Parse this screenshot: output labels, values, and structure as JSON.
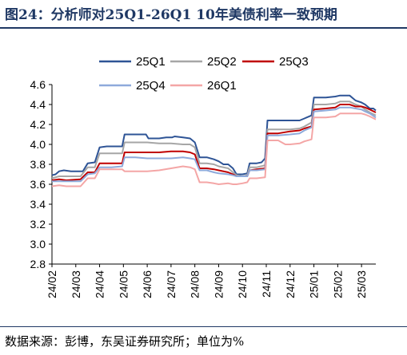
{
  "title": "图24：分析师对25Q1-26Q1 10年美债利率一致预期",
  "source": "数据来源：彭博，东吴证券研究所；单位为%",
  "chart_data": {
    "type": "line",
    "title": "图24：分析师对25Q1-26Q1 10年美债利率一致预期",
    "xlabel": "",
    "ylabel": "",
    "x_ticks": [
      "24/02",
      "24/03",
      "24/04",
      "24/05",
      "24/06",
      "24/07",
      "24/08",
      "24/09",
      "24/10",
      "24/11",
      "24/12",
      "25/01",
      "25/02",
      "25/03"
    ],
    "y_ticks": [
      "2.8",
      "3.0",
      "3.2",
      "3.4",
      "3.6",
      "3.8",
      "4.0",
      "4.2",
      "4.4",
      "4.6"
    ],
    "ylim": [
      2.8,
      4.6
    ],
    "x_range": [
      0,
      13.6
    ],
    "grid": false,
    "legend_position": "top",
    "series": [
      {
        "name": "25Q1",
        "color": "#2e5496",
        "points": [
          [
            0,
            3.69
          ],
          [
            0.15,
            3.7
          ],
          [
            0.3,
            3.73
          ],
          [
            0.5,
            3.74
          ],
          [
            0.8,
            3.73
          ],
          [
            1.1,
            3.73
          ],
          [
            1.3,
            3.73
          ],
          [
            1.5,
            3.81
          ],
          [
            1.8,
            3.82
          ],
          [
            2.0,
            3.97
          ],
          [
            2.3,
            3.98
          ],
          [
            2.7,
            3.98
          ],
          [
            2.95,
            3.98
          ],
          [
            3.05,
            4.1
          ],
          [
            3.5,
            4.1
          ],
          [
            3.95,
            4.1
          ],
          [
            4.05,
            4.06
          ],
          [
            4.5,
            4.06
          ],
          [
            4.8,
            4.07
          ],
          [
            5.05,
            4.07
          ],
          [
            5.15,
            4.08
          ],
          [
            5.5,
            4.07
          ],
          [
            5.8,
            4.06
          ],
          [
            6.0,
            4.02
          ],
          [
            6.2,
            3.87
          ],
          [
            6.5,
            3.87
          ],
          [
            6.8,
            3.85
          ],
          [
            7.0,
            3.83
          ],
          [
            7.2,
            3.8
          ],
          [
            7.4,
            3.8
          ],
          [
            7.6,
            3.76
          ],
          [
            7.75,
            3.7
          ],
          [
            8.0,
            3.7
          ],
          [
            8.2,
            3.71
          ],
          [
            8.3,
            3.81
          ],
          [
            8.6,
            3.81
          ],
          [
            8.8,
            3.82
          ],
          [
            8.95,
            3.86
          ],
          [
            9.05,
            4.24
          ],
          [
            9.5,
            4.24
          ],
          [
            10.0,
            4.24
          ],
          [
            10.4,
            4.24
          ],
          [
            10.6,
            4.26
          ],
          [
            10.9,
            4.29
          ],
          [
            11.0,
            4.47
          ],
          [
            11.5,
            4.47
          ],
          [
            11.9,
            4.48
          ],
          [
            12.1,
            4.49
          ],
          [
            12.5,
            4.49
          ],
          [
            12.75,
            4.44
          ],
          [
            13.0,
            4.42
          ],
          [
            13.15,
            4.4
          ],
          [
            13.35,
            4.36
          ],
          [
            13.5,
            4.36
          ],
          [
            13.6,
            4.34
          ]
        ]
      },
      {
        "name": "25Q2",
        "color": "#a6a6a6",
        "points": [
          [
            0,
            3.66
          ],
          [
            0.3,
            3.68
          ],
          [
            0.6,
            3.68
          ],
          [
            1.2,
            3.68
          ],
          [
            1.5,
            3.77
          ],
          [
            1.8,
            3.77
          ],
          [
            2.0,
            3.91
          ],
          [
            2.5,
            3.91
          ],
          [
            2.95,
            3.91
          ],
          [
            3.05,
            4.02
          ],
          [
            3.5,
            4.02
          ],
          [
            4.0,
            4.02
          ],
          [
            4.5,
            4.01
          ],
          [
            5.0,
            4.01
          ],
          [
            5.5,
            4.0
          ],
          [
            5.8,
            4.0
          ],
          [
            6.0,
            3.97
          ],
          [
            6.2,
            3.81
          ],
          [
            6.5,
            3.81
          ],
          [
            6.8,
            3.8
          ],
          [
            7.0,
            3.78
          ],
          [
            7.4,
            3.76
          ],
          [
            7.6,
            3.72
          ],
          [
            7.75,
            3.69
          ],
          [
            8.0,
            3.68
          ],
          [
            8.2,
            3.69
          ],
          [
            8.3,
            3.77
          ],
          [
            8.6,
            3.77
          ],
          [
            8.95,
            3.79
          ],
          [
            9.05,
            4.15
          ],
          [
            9.5,
            4.15
          ],
          [
            10.0,
            4.15
          ],
          [
            10.4,
            4.16
          ],
          [
            10.6,
            4.18
          ],
          [
            10.9,
            4.22
          ],
          [
            11.0,
            4.4
          ],
          [
            11.5,
            4.4
          ],
          [
            11.9,
            4.41
          ],
          [
            12.1,
            4.43
          ],
          [
            12.5,
            4.43
          ],
          [
            12.75,
            4.4
          ],
          [
            13.0,
            4.38
          ],
          [
            13.15,
            4.35
          ],
          [
            13.35,
            4.32
          ],
          [
            13.6,
            4.29
          ]
        ]
      },
      {
        "name": "25Q3",
        "color": "#c00000",
        "points": [
          [
            0,
            3.64
          ],
          [
            0.3,
            3.65
          ],
          [
            0.6,
            3.64
          ],
          [
            1.2,
            3.65
          ],
          [
            1.5,
            3.72
          ],
          [
            1.8,
            3.72
          ],
          [
            2.0,
            3.81
          ],
          [
            2.5,
            3.81
          ],
          [
            2.95,
            3.81
          ],
          [
            3.05,
            3.92
          ],
          [
            3.5,
            3.92
          ],
          [
            4.0,
            3.92
          ],
          [
            4.5,
            3.92
          ],
          [
            5.0,
            3.93
          ],
          [
            5.5,
            3.93
          ],
          [
            5.8,
            3.92
          ],
          [
            6.0,
            3.9
          ],
          [
            6.2,
            3.76
          ],
          [
            6.5,
            3.76
          ],
          [
            6.8,
            3.75
          ],
          [
            7.0,
            3.74
          ],
          [
            7.4,
            3.72
          ],
          [
            7.6,
            3.7
          ],
          [
            7.75,
            3.68
          ],
          [
            8.0,
            3.68
          ],
          [
            8.2,
            3.68
          ],
          [
            8.3,
            3.74
          ],
          [
            8.6,
            3.75
          ],
          [
            8.95,
            3.76
          ],
          [
            9.05,
            4.11
          ],
          [
            9.5,
            4.11
          ],
          [
            10.0,
            4.13
          ],
          [
            10.4,
            4.14
          ],
          [
            10.6,
            4.16
          ],
          [
            10.9,
            4.18
          ],
          [
            11.0,
            4.35
          ],
          [
            11.5,
            4.36
          ],
          [
            11.9,
            4.37
          ],
          [
            12.1,
            4.4
          ],
          [
            12.5,
            4.4
          ],
          [
            12.75,
            4.38
          ],
          [
            13.0,
            4.38
          ],
          [
            13.15,
            4.37
          ],
          [
            13.35,
            4.35
          ],
          [
            13.6,
            4.32
          ]
        ]
      },
      {
        "name": "25Q4",
        "color": "#8eaadb",
        "points": [
          [
            0,
            3.63
          ],
          [
            0.3,
            3.63
          ],
          [
            0.6,
            3.63
          ],
          [
            1.2,
            3.63
          ],
          [
            1.5,
            3.7
          ],
          [
            1.8,
            3.71
          ],
          [
            2.0,
            3.77
          ],
          [
            2.5,
            3.77
          ],
          [
            2.95,
            3.78
          ],
          [
            3.05,
            3.87
          ],
          [
            3.5,
            3.87
          ],
          [
            4.0,
            3.86
          ],
          [
            4.5,
            3.86
          ],
          [
            5.0,
            3.86
          ],
          [
            5.5,
            3.87
          ],
          [
            5.8,
            3.86
          ],
          [
            6.0,
            3.85
          ],
          [
            6.2,
            3.74
          ],
          [
            6.5,
            3.74
          ],
          [
            6.8,
            3.72
          ],
          [
            7.0,
            3.71
          ],
          [
            7.4,
            3.7
          ],
          [
            7.6,
            3.69
          ],
          [
            7.75,
            3.68
          ],
          [
            8.0,
            3.68
          ],
          [
            8.2,
            3.68
          ],
          [
            8.3,
            3.74
          ],
          [
            8.6,
            3.74
          ],
          [
            8.95,
            3.75
          ],
          [
            9.05,
            4.09
          ],
          [
            9.5,
            4.09
          ],
          [
            10.0,
            4.1
          ],
          [
            10.4,
            4.11
          ],
          [
            10.6,
            4.14
          ],
          [
            10.9,
            4.17
          ],
          [
            11.0,
            4.33
          ],
          [
            11.5,
            4.34
          ],
          [
            11.9,
            4.35
          ],
          [
            12.1,
            4.37
          ],
          [
            12.5,
            4.37
          ],
          [
            12.75,
            4.36
          ],
          [
            13.0,
            4.35
          ],
          [
            13.15,
            4.33
          ],
          [
            13.35,
            4.31
          ],
          [
            13.6,
            4.27
          ]
        ]
      },
      {
        "name": "26Q1",
        "color": "#f4a6a6",
        "points": [
          [
            0,
            3.58
          ],
          [
            0.3,
            3.59
          ],
          [
            0.6,
            3.58
          ],
          [
            1.2,
            3.58
          ],
          [
            1.5,
            3.66
          ],
          [
            1.8,
            3.66
          ],
          [
            2.0,
            3.75
          ],
          [
            2.5,
            3.75
          ],
          [
            2.95,
            3.75
          ],
          [
            3.05,
            3.73
          ],
          [
            3.5,
            3.73
          ],
          [
            4.0,
            3.73
          ],
          [
            4.5,
            3.74
          ],
          [
            5.0,
            3.76
          ],
          [
            5.5,
            3.78
          ],
          [
            5.8,
            3.77
          ],
          [
            6.0,
            3.75
          ],
          [
            6.2,
            3.62
          ],
          [
            6.5,
            3.62
          ],
          [
            6.8,
            3.61
          ],
          [
            7.0,
            3.6
          ],
          [
            7.4,
            3.61
          ],
          [
            7.6,
            3.6
          ],
          [
            7.75,
            3.6
          ],
          [
            8.0,
            3.61
          ],
          [
            8.2,
            3.62
          ],
          [
            8.3,
            3.66
          ],
          [
            8.6,
            3.66
          ],
          [
            8.95,
            3.67
          ],
          [
            9.05,
            4.04
          ],
          [
            9.5,
            4.04
          ],
          [
            9.8,
            4.0
          ],
          [
            10.0,
            4.0
          ],
          [
            10.4,
            4.01
          ],
          [
            10.6,
            4.03
          ],
          [
            10.9,
            4.05
          ],
          [
            11.0,
            4.27
          ],
          [
            11.5,
            4.27
          ],
          [
            11.9,
            4.28
          ],
          [
            12.1,
            4.31
          ],
          [
            12.5,
            4.31
          ],
          [
            12.75,
            4.31
          ],
          [
            13.0,
            4.31
          ],
          [
            13.15,
            4.3
          ],
          [
            13.35,
            4.28
          ],
          [
            13.6,
            4.25
          ]
        ]
      }
    ]
  }
}
